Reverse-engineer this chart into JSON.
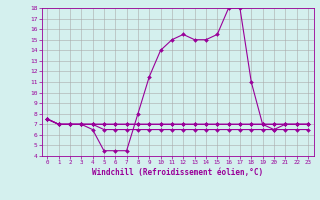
{
  "xlabel": "Windchill (Refroidissement éolien,°C)",
  "x": [
    0,
    1,
    2,
    3,
    4,
    5,
    6,
    7,
    8,
    9,
    10,
    11,
    12,
    13,
    14,
    15,
    16,
    17,
    18,
    19,
    20,
    21,
    22,
    23
  ],
  "line1": [
    7.5,
    7.0,
    7.0,
    7.0,
    6.5,
    4.5,
    4.5,
    4.5,
    8.0,
    11.5,
    14.0,
    15.0,
    15.5,
    15.0,
    15.0,
    15.5,
    18.0,
    18.0,
    11.0,
    7.0,
    6.5,
    7.0,
    7.0,
    7.0
  ],
  "line2": [
    7.5,
    7.0,
    7.0,
    7.0,
    7.0,
    7.0,
    7.0,
    7.0,
    7.0,
    7.0,
    7.0,
    7.0,
    7.0,
    7.0,
    7.0,
    7.0,
    7.0,
    7.0,
    7.0,
    7.0,
    7.0,
    7.0,
    7.0,
    7.0
  ],
  "line3": [
    7.5,
    7.0,
    7.0,
    7.0,
    7.0,
    6.5,
    6.5,
    6.5,
    6.5,
    6.5,
    6.5,
    6.5,
    6.5,
    6.5,
    6.5,
    6.5,
    6.5,
    6.5,
    6.5,
    6.5,
    6.5,
    6.5,
    6.5,
    6.5
  ],
  "line4": [
    7.5,
    7.0,
    7.0,
    7.0,
    7.0,
    7.0,
    7.0,
    7.0,
    7.0,
    7.0,
    7.0,
    7.0,
    7.0,
    7.0,
    7.0,
    7.0,
    7.0,
    7.0,
    7.0,
    7.0,
    7.0,
    7.0,
    7.0,
    7.0
  ],
  "bg_color": "#d4f0ee",
  "line_color": "#990099",
  "grid_color": "#aaaaaa",
  "ylim": [
    4,
    18
  ],
  "yticks": [
    4,
    5,
    6,
    7,
    8,
    9,
    10,
    11,
    12,
    13,
    14,
    15,
    16,
    17,
    18
  ],
  "xticks": [
    0,
    1,
    2,
    3,
    4,
    5,
    6,
    7,
    8,
    9,
    10,
    11,
    12,
    13,
    14,
    15,
    16,
    17,
    18,
    19,
    20,
    21,
    22,
    23
  ],
  "marker": "D",
  "markersize": 2,
  "linewidth": 0.8
}
